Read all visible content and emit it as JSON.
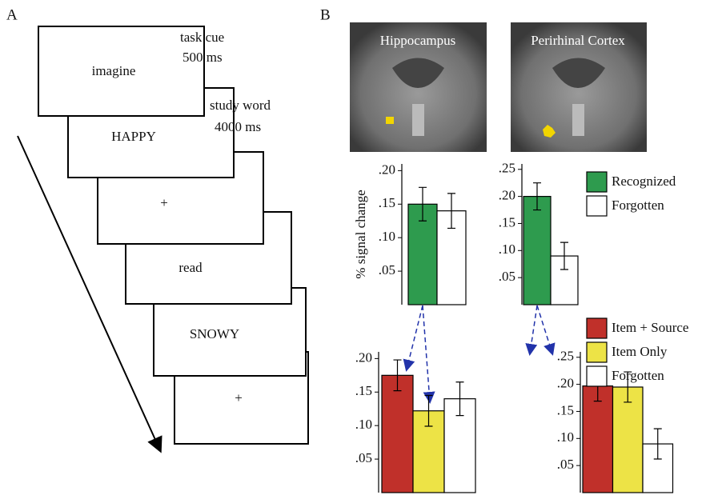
{
  "panel_labels": {
    "a": "A",
    "b": "B"
  },
  "trial_sequence": {
    "slides": [
      "imagine",
      "HAPPY",
      "+",
      "read",
      "SNOWY",
      "+"
    ],
    "annotations": [
      "task cue",
      "500 ms",
      "study word",
      "4000 ms"
    ]
  },
  "brain_images": [
    "Hippocampus",
    "Perirhinal Cortex"
  ],
  "chart_data": [
    {
      "type": "bar",
      "ylabel": "% signal change",
      "ylim": [
        0,
        0.21
      ],
      "yticks": [
        {
          "value": 0.05,
          "label": ".05"
        },
        {
          "value": 0.1,
          "label": ".10"
        },
        {
          "value": 0.15,
          "label": ".15"
        },
        {
          "value": 0.2,
          "label": ".20"
        }
      ],
      "series": [
        {
          "color": "#2e9b4e",
          "values": [
            0.15
          ],
          "errors": [
            0.025
          ]
        },
        {
          "color": "#ffffff",
          "values": [
            0.14
          ],
          "errors": [
            0.026
          ]
        }
      ]
    },
    {
      "type": "bar",
      "ylim": [
        0,
        0.26
      ],
      "yticks": [
        {
          "value": 0.05,
          "label": ".05"
        },
        {
          "value": 0.1,
          "label": ".10"
        },
        {
          "value": 0.15,
          "label": ".15"
        },
        {
          "value": 0.2,
          "label": ".20"
        },
        {
          "value": 0.25,
          "label": ".25"
        }
      ],
      "series": [
        {
          "name": "Recognized",
          "color": "#2e9b4e",
          "values": [
            0.2
          ],
          "errors": [
            0.025
          ]
        },
        {
          "name": "Forgotten",
          "color": "#ffffff",
          "values": [
            0.09
          ],
          "errors": [
            0.025
          ]
        }
      ]
    },
    {
      "type": "bar",
      "ylim": [
        0,
        0.21
      ],
      "yticks": [
        {
          "value": 0.05,
          "label": ".05"
        },
        {
          "value": 0.1,
          "label": ".10"
        },
        {
          "value": 0.15,
          "label": ".15"
        },
        {
          "value": 0.2,
          "label": ".20"
        }
      ],
      "series": [
        {
          "color": "#c0302a",
          "values": [
            0.175
          ],
          "errors": [
            0.023
          ]
        },
        {
          "color": "#ede346",
          "values": [
            0.122
          ],
          "errors": [
            0.023
          ]
        },
        {
          "color": "#ffffff",
          "values": [
            0.14
          ],
          "errors": [
            0.025
          ]
        }
      ]
    },
    {
      "type": "bar",
      "ylim": [
        0,
        0.26
      ],
      "yticks": [
        {
          "value": 0.05,
          "label": ".05"
        },
        {
          "value": 0.1,
          "label": ".10"
        },
        {
          "value": 0.15,
          "label": ".15"
        },
        {
          "value": 0.2,
          "label": ".20"
        },
        {
          "value": 0.25,
          "label": ".25"
        }
      ],
      "series": [
        {
          "name": "Item + Source",
          "color": "#c0302a",
          "values": [
            0.197
          ],
          "errors": [
            0.028
          ]
        },
        {
          "name": "Item Only",
          "color": "#ede346",
          "values": [
            0.195
          ],
          "errors": [
            0.028
          ]
        },
        {
          "name": "Forgotten",
          "color": "#ffffff",
          "values": [
            0.09
          ],
          "errors": [
            0.028
          ]
        }
      ]
    }
  ]
}
